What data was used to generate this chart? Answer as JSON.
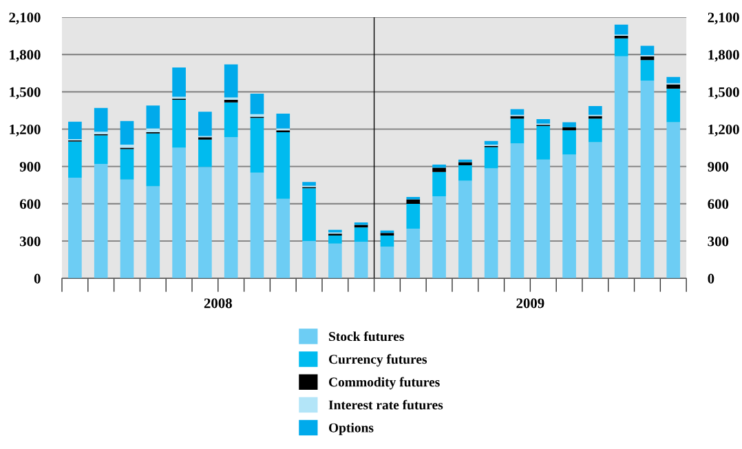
{
  "chart_data": {
    "type": "bar",
    "stacked": true,
    "categories": [
      null,
      null,
      null,
      null,
      null,
      null,
      null,
      null,
      null,
      null,
      null,
      null,
      null,
      null,
      null,
      null,
      null,
      null,
      null,
      null,
      null,
      null,
      null,
      null
    ],
    "series": [
      {
        "name": "Stock futures",
        "color": "#6dcdf4",
        "values": [
          810,
          920,
          795,
          740,
          1050,
          895,
          1135,
          850,
          640,
          300,
          280,
          295,
          255,
          400,
          660,
          785,
          885,
          1085,
          955,
          995,
          1095,
          1785,
          1590,
          1255
        ]
      },
      {
        "name": "Currency futures",
        "color": "#00bbef",
        "values": [
          290,
          230,
          245,
          425,
          385,
          220,
          280,
          440,
          535,
          425,
          65,
          115,
          90,
          200,
          195,
          125,
          170,
          200,
          270,
          195,
          190,
          145,
          165,
          270
        ]
      },
      {
        "name": "Commodity futures",
        "color": "#000000",
        "values": [
          10,
          10,
          10,
          10,
          10,
          20,
          20,
          10,
          15,
          10,
          15,
          20,
          20,
          35,
          35,
          25,
          10,
          20,
          10,
          25,
          20,
          20,
          30,
          35
        ]
      },
      {
        "name": "Interest rate futures",
        "color": "#b3e5f8",
        "values": [
          10,
          20,
          25,
          30,
          15,
          10,
          20,
          20,
          15,
          10,
          10,
          0,
          0,
          0,
          0,
          0,
          10,
          10,
          10,
          0,
          10,
          10,
          10,
          10
        ]
      },
      {
        "name": "Options",
        "color": "#00aaeb",
        "values": [
          140,
          190,
          190,
          185,
          235,
          195,
          265,
          165,
          120,
          30,
          20,
          20,
          20,
          20,
          25,
          20,
          30,
          45,
          35,
          40,
          70,
          80,
          75,
          50
        ]
      }
    ],
    "annotations": [
      "2008",
      "2009"
    ],
    "ylim": [
      0,
      2100
    ],
    "yticks": [
      {
        "value": 0,
        "label": "0"
      },
      {
        "value": 300,
        "label": "300"
      },
      {
        "value": 600,
        "label": "600"
      },
      {
        "value": 900,
        "label": "900"
      },
      {
        "value": 1200,
        "label": "1,200"
      },
      {
        "value": 1500,
        "label": "1,500"
      },
      {
        "value": 1800,
        "label": "1,800"
      },
      {
        "value": 2100,
        "label": "2,100"
      }
    ],
    "y2lim": [
      0,
      2100
    ],
    "y2ticks": [
      {
        "value": 0,
        "label": "0"
      },
      {
        "value": 300,
        "label": "300"
      },
      {
        "value": 600,
        "label": "600"
      },
      {
        "value": 900,
        "label": "900"
      },
      {
        "value": 1200,
        "label": "1,200"
      },
      {
        "value": 1500,
        "label": "1,500"
      },
      {
        "value": 1800,
        "label": "1,800"
      },
      {
        "value": 2100,
        "label": "2,100"
      }
    ],
    "grid": "y",
    "legend": "bottom"
  }
}
